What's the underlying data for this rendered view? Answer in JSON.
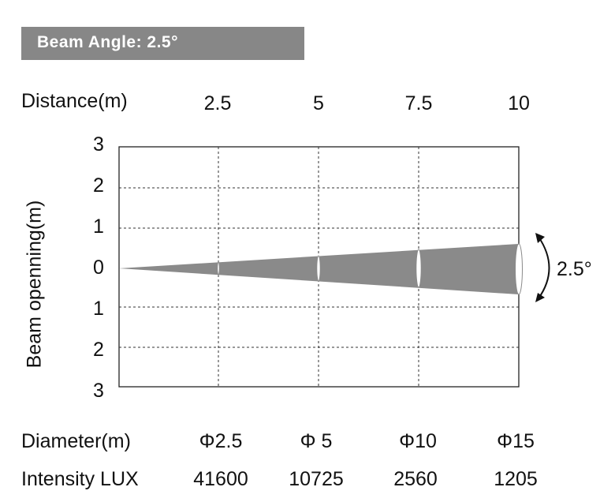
{
  "title": "Beam Angle: 2.5°",
  "distance_label": "Distance(m)",
  "distances": [
    "2.5",
    "5",
    "7.5",
    "10"
  ],
  "y_label": "Beam openning(m)",
  "y_ticks": [
    "3",
    "2",
    "1",
    "0",
    "1",
    "2",
    "3"
  ],
  "angle_label": "2.5°",
  "diameter_label": "Diameter(m)",
  "diameters": [
    "Φ2.5",
    "Φ 5",
    "Φ10",
    "Φ15"
  ],
  "intensity_label": "Intensity LUX",
  "intensities": [
    "41600",
    "10725",
    "2560",
    "1205"
  ],
  "colors": {
    "title_bg": "#878787",
    "beam": "#8a8a8a"
  }
}
